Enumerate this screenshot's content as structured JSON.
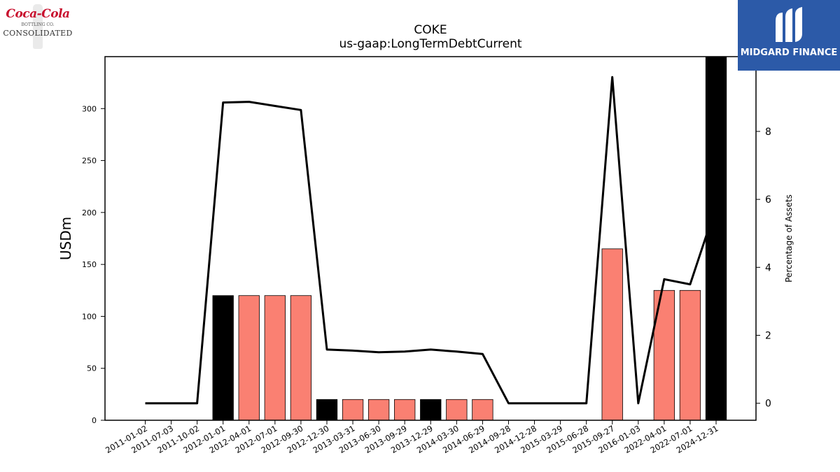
{
  "chart_data": {
    "type": "bar",
    "title": "COKE",
    "subtitle": "us-gaap:LongTermDebtCurrent",
    "ylabel": "USDm",
    "y2label": "Percentage of Assets",
    "ylim": [
      0,
      350
    ],
    "y2lim": [
      -0.5,
      10.2
    ],
    "yticks": [
      0,
      50,
      100,
      150,
      200,
      250,
      300
    ],
    "y2ticks": [
      0,
      2,
      4,
      6,
      8
    ],
    "categories": [
      "2011-01-02",
      "2011-07-03",
      "2011-10-02",
      "2012-01-01",
      "2012-04-01",
      "2012-07-01",
      "2012-09-30",
      "2012-12-30",
      "2013-03-31",
      "2013-06-30",
      "2013-09-29",
      "2013-12-29",
      "2014-03-30",
      "2014-06-29",
      "2014-09-28",
      "2014-12-28",
      "2015-03-29",
      "2015-06-28",
      "2015-09-27",
      "2016-01-03",
      "2022-04-01",
      "2022-07-01",
      "2024-12-31"
    ],
    "series": [
      {
        "values": [
          0,
          0,
          0,
          120,
          120,
          120,
          120,
          20,
          20,
          20,
          20,
          20,
          20,
          20,
          0,
          0,
          0,
          0,
          165,
          0,
          125,
          125,
          350
        ],
        "bar_colors": [
          "#fa8072",
          "#fa8072",
          "#fa8072",
          "#000000",
          "#fa8072",
          "#fa8072",
          "#fa8072",
          "#000000",
          "#fa8072",
          "#fa8072",
          "#fa8072",
          "#000000",
          "#fa8072",
          "#fa8072",
          "#fa8072",
          "#fa8072",
          "#fa8072",
          "#fa8072",
          "#fa8072",
          "#fa8072",
          "#fa8072",
          "#fa8072",
          "#000000"
        ]
      },
      {
        "axis": "right",
        "type": "line",
        "color": "#000000",
        "values": [
          0,
          0,
          0,
          8.85,
          8.87,
          8.75,
          8.63,
          1.58,
          1.55,
          1.5,
          1.52,
          1.58,
          1.52,
          1.45,
          0,
          0,
          0,
          0,
          9.6,
          0,
          3.65,
          3.5,
          5.8
        ]
      }
    ]
  },
  "logos": {
    "left": {
      "script": "Coca-Cola",
      "line2": "BOTTLING CO.",
      "line3": "CONSOLIDATED"
    },
    "right": {
      "name": "MIDGARD FINANCE",
      "bg": "#2c5aa8"
    }
  }
}
